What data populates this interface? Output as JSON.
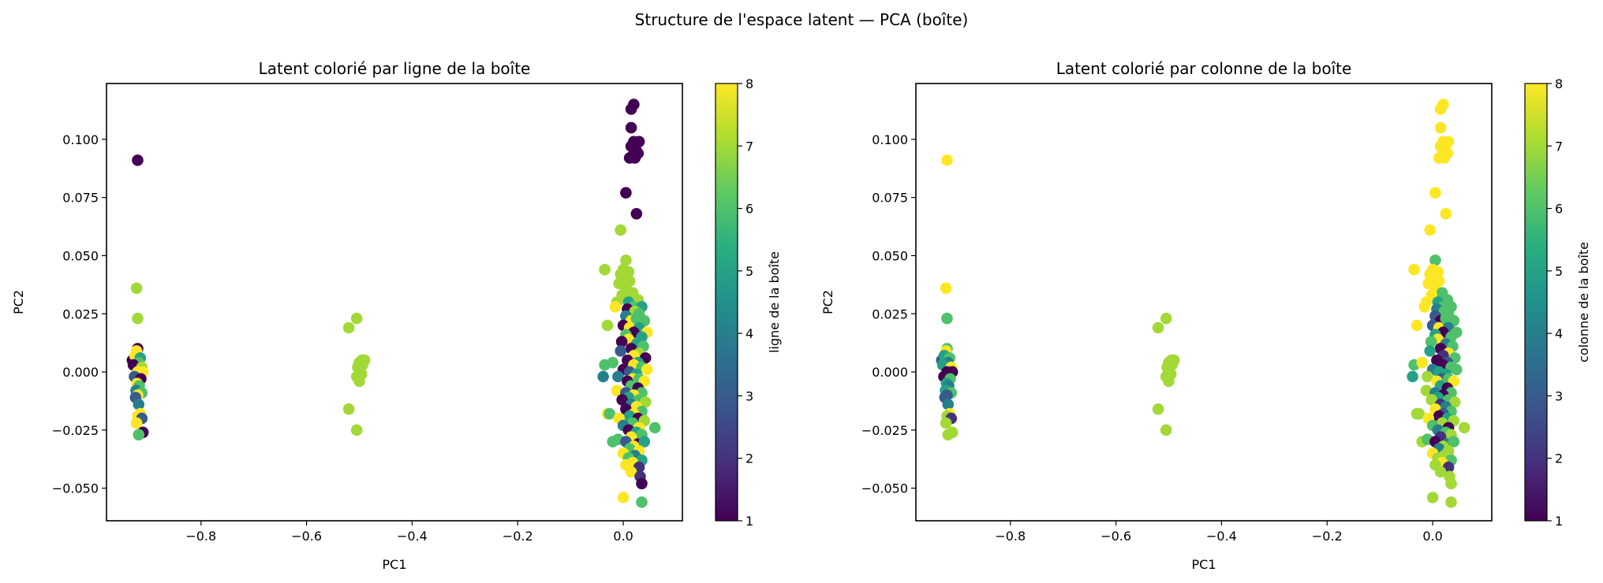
{
  "suptitle": "Structure de l'espace latent — PCA (boîte)",
  "chart_data": [
    {
      "type": "scatter",
      "title": "Latent colorié par ligne de la boîte",
      "xlabel": "PC1",
      "ylabel": "PC2",
      "colorbar_label": "ligne de la boîte",
      "color_field": "row",
      "colormap": "viridis",
      "color_range": [
        1,
        8
      ],
      "colorbar_ticks": [
        "1",
        "2",
        "3",
        "4",
        "5",
        "6",
        "7",
        "8"
      ],
      "xlim": [
        -0.979,
        0.112
      ],
      "ylim": [
        -0.064,
        0.124
      ],
      "xticks": [
        -0.8,
        -0.6,
        -0.4,
        -0.2,
        0.0
      ],
      "xtick_labels": [
        "−0.8",
        "−0.6",
        "−0.4",
        "−0.2",
        "0.0"
      ],
      "yticks": [
        -0.05,
        -0.025,
        0,
        0.025,
        0.05,
        0.075,
        0.1
      ],
      "ytick_labels": [
        "−0.050",
        "−0.025",
        "0.000",
        "0.025",
        "0.050",
        "0.075",
        "0.100"
      ],
      "grid": false
    },
    {
      "type": "scatter",
      "title": "Latent colorié par colonne de la boîte",
      "xlabel": "PC1",
      "ylabel": "PC2",
      "colorbar_label": "colonne de la boîte",
      "color_field": "col",
      "colormap": "viridis",
      "color_range": [
        1,
        8
      ],
      "colorbar_ticks": [
        "1",
        "2",
        "3",
        "4",
        "5",
        "6",
        "7",
        "8"
      ],
      "xlim": [
        -0.979,
        0.112
      ],
      "ylim": [
        -0.064,
        0.124
      ],
      "xticks": [
        -0.8,
        -0.6,
        -0.4,
        -0.2,
        0.0
      ],
      "xtick_labels": [
        "−0.8",
        "−0.6",
        "−0.4",
        "−0.2",
        "0.0"
      ],
      "yticks": [
        -0.05,
        -0.025,
        0,
        0.025,
        0.05,
        0.075,
        0.1
      ],
      "ytick_labels": [
        "−0.050",
        "−0.025",
        "0.000",
        "0.025",
        "0.050",
        "0.075",
        "0.100"
      ],
      "grid": false
    }
  ],
  "point_fields": [
    "pc1",
    "pc2",
    "row",
    "col"
  ],
  "points": [
    [
      -0.93,
      0.005,
      1,
      3
    ],
    [
      -0.92,
      0.01,
      1,
      6
    ],
    [
      -0.922,
      0.009,
      8,
      8
    ],
    [
      -0.925,
      0.007,
      8,
      5
    ],
    [
      -0.915,
      0.006,
      5,
      6
    ],
    [
      -0.918,
      0.004,
      6,
      4
    ],
    [
      -0.928,
      0.003,
      1,
      5
    ],
    [
      -0.912,
      0.002,
      7,
      8
    ],
    [
      -0.92,
      0.0,
      8,
      1
    ],
    [
      -0.91,
      0.0,
      8,
      1
    ],
    [
      -0.926,
      -0.002,
      3,
      1
    ],
    [
      -0.914,
      -0.003,
      1,
      6
    ],
    [
      -0.921,
      -0.005,
      8,
      5
    ],
    [
      -0.917,
      -0.006,
      6,
      4
    ],
    [
      -0.923,
      -0.008,
      4,
      5
    ],
    [
      -0.912,
      -0.009,
      6,
      6
    ],
    [
      -0.92,
      -0.01,
      8,
      3
    ],
    [
      -0.924,
      -0.011,
      3,
      3
    ],
    [
      -0.918,
      -0.014,
      4,
      4
    ],
    [
      -0.915,
      -0.018,
      8,
      8
    ],
    [
      -0.92,
      -0.019,
      8,
      7
    ],
    [
      -0.912,
      -0.02,
      3,
      2
    ],
    [
      -0.922,
      -0.022,
      8,
      7
    ],
    [
      -0.91,
      -0.026,
      1,
      7
    ],
    [
      -0.918,
      -0.027,
      6,
      7
    ],
    [
      -0.922,
      0.036,
      7,
      8
    ],
    [
      -0.92,
      0.023,
      7,
      6
    ],
    [
      -0.92,
      0.091,
      1,
      8
    ],
    [
      -0.52,
      0.019,
      7,
      7
    ],
    [
      -0.505,
      0.023,
      7,
      7
    ],
    [
      -0.52,
      -0.016,
      7,
      7
    ],
    [
      -0.505,
      -0.025,
      7,
      7
    ],
    [
      -0.495,
      0.005,
      7,
      7
    ],
    [
      -0.49,
      0.005,
      7,
      7
    ],
    [
      -0.5,
      0.004,
      7,
      7
    ],
    [
      -0.503,
      0.002,
      7,
      7
    ],
    [
      -0.498,
      0.0,
      7,
      7
    ],
    [
      -0.505,
      -0.002,
      7,
      7
    ],
    [
      -0.5,
      -0.004,
      7,
      7
    ],
    [
      -0.496,
      -0.001,
      7,
      7
    ],
    [
      -0.494,
      0.003,
      7,
      7
    ],
    [
      0.02,
      0.115,
      1,
      8
    ],
    [
      0.015,
      0.113,
      1,
      8
    ],
    [
      0.015,
      0.105,
      1,
      8
    ],
    [
      0.02,
      0.099,
      1,
      8
    ],
    [
      0.03,
      0.099,
      1,
      8
    ],
    [
      0.015,
      0.097,
      1,
      8
    ],
    [
      0.025,
      0.095,
      1,
      8
    ],
    [
      0.018,
      0.093,
      1,
      8
    ],
    [
      0.012,
      0.092,
      1,
      8
    ],
    [
      0.022,
      0.092,
      1,
      8
    ],
    [
      0.028,
      0.094,
      1,
      8
    ],
    [
      0.005,
      0.077,
      1,
      8
    ],
    [
      0.025,
      0.068,
      1,
      8
    ],
    [
      -0.005,
      0.061,
      7,
      8
    ],
    [
      0.005,
      0.048,
      7,
      6
    ],
    [
      0.0,
      0.044,
      7,
      8
    ],
    [
      -0.035,
      0.044,
      7,
      8
    ],
    [
      0.01,
      0.043,
      7,
      8
    ],
    [
      -0.005,
      0.042,
      7,
      8
    ],
    [
      0.002,
      0.04,
      7,
      8
    ],
    [
      -0.008,
      0.038,
      7,
      8
    ],
    [
      0.012,
      0.039,
      7,
      8
    ],
    [
      0.005,
      0.036,
      7,
      8
    ],
    [
      0.018,
      0.034,
      7,
      6
    ],
    [
      -0.002,
      0.033,
      7,
      8
    ],
    [
      -0.012,
      0.03,
      7,
      8
    ],
    [
      0.028,
      0.031,
      7,
      6
    ],
    [
      0.01,
      0.03,
      5,
      5
    ],
    [
      0.02,
      0.028,
      6,
      6
    ],
    [
      0.035,
      0.028,
      5,
      6
    ],
    [
      -0.015,
      0.028,
      8,
      8
    ],
    [
      0.008,
      0.027,
      1,
      4
    ],
    [
      0.022,
      0.026,
      7,
      6
    ],
    [
      0.03,
      0.025,
      6,
      6
    ],
    [
      -0.03,
      0.02,
      7,
      8
    ],
    [
      0.005,
      0.024,
      4,
      3
    ],
    [
      0.015,
      0.022,
      8,
      1
    ],
    [
      0.025,
      0.023,
      6,
      6
    ],
    [
      0.04,
      0.022,
      6,
      6
    ],
    [
      0.0,
      0.02,
      1,
      3
    ],
    [
      0.012,
      0.019,
      8,
      8
    ],
    [
      0.03,
      0.019,
      5,
      4
    ],
    [
      0.045,
      0.017,
      8,
      6
    ],
    [
      0.02,
      0.017,
      1,
      1
    ],
    [
      0.005,
      0.016,
      6,
      5
    ],
    [
      0.035,
      0.015,
      5,
      6
    ],
    [
      0.01,
      0.014,
      8,
      8
    ],
    [
      -0.003,
      0.013,
      1,
      6
    ],
    [
      0.025,
      0.012,
      5,
      4
    ],
    [
      0.038,
      0.011,
      6,
      6
    ],
    [
      0.015,
      0.01,
      1,
      1
    ],
    [
      -0.005,
      0.009,
      3,
      5
    ],
    [
      0.03,
      0.008,
      7,
      8
    ],
    [
      0.02,
      0.007,
      8,
      2
    ],
    [
      0.042,
      0.006,
      1,
      6
    ],
    [
      0.008,
      0.005,
      1,
      1
    ],
    [
      0.028,
      0.004,
      5,
      3
    ],
    [
      -0.035,
      0.003,
      6,
      6
    ],
    [
      -0.02,
      0.004,
      6,
      8
    ],
    [
      0.02,
      0.003,
      8,
      1
    ],
    [
      0.035,
      0.002,
      6,
      6
    ],
    [
      0.0,
      0.001,
      1,
      4
    ],
    [
      0.012,
      0.0,
      3,
      5
    ],
    [
      0.045,
      0.001,
      8,
      6
    ],
    [
      0.025,
      -0.001,
      5,
      5
    ],
    [
      0.018,
      -0.003,
      8,
      3
    ],
    [
      -0.01,
      -0.002,
      4,
      7
    ],
    [
      0.03,
      -0.003,
      6,
      6
    ],
    [
      -0.038,
      -0.002,
      4,
      5
    ],
    [
      0.008,
      -0.004,
      1,
      8
    ],
    [
      0.04,
      -0.004,
      8,
      8
    ],
    [
      0.015,
      -0.006,
      6,
      5
    ],
    [
      0.028,
      -0.007,
      1,
      1
    ],
    [
      -0.012,
      -0.008,
      8,
      7
    ],
    [
      0.005,
      -0.009,
      3,
      4
    ],
    [
      0.035,
      -0.009,
      6,
      6
    ],
    [
      0.02,
      -0.01,
      8,
      1
    ],
    [
      0.01,
      -0.011,
      5,
      5
    ],
    [
      -0.002,
      -0.012,
      1,
      7
    ],
    [
      0.03,
      -0.012,
      6,
      6
    ],
    [
      0.042,
      -0.013,
      7,
      7
    ],
    [
      0.015,
      -0.014,
      4,
      2
    ],
    [
      0.025,
      -0.015,
      8,
      4
    ],
    [
      -0.03,
      -0.018,
      8,
      7
    ],
    [
      -0.026,
      -0.018,
      6,
      7
    ],
    [
      0.005,
      -0.016,
      1,
      8
    ],
    [
      0.035,
      -0.017,
      6,
      6
    ],
    [
      0.02,
      -0.018,
      8,
      3
    ],
    [
      0.012,
      -0.019,
      5,
      1
    ],
    [
      0.028,
      -0.02,
      1,
      5
    ],
    [
      -0.008,
      -0.02,
      8,
      8
    ],
    [
      0.04,
      -0.021,
      7,
      7
    ],
    [
      0.018,
      -0.022,
      6,
      7
    ],
    [
      0.0,
      -0.023,
      4,
      6
    ],
    [
      0.03,
      -0.024,
      8,
      1
    ],
    [
      0.06,
      -0.024,
      6,
      7
    ],
    [
      0.01,
      -0.025,
      1,
      4
    ],
    [
      0.025,
      -0.026,
      5,
      6
    ],
    [
      0.035,
      -0.027,
      6,
      7
    ],
    [
      0.015,
      -0.028,
      8,
      2
    ],
    [
      -0.02,
      -0.03,
      6,
      7
    ],
    [
      -0.01,
      -0.029,
      6,
      6
    ],
    [
      0.005,
      -0.03,
      3,
      1
    ],
    [
      0.028,
      -0.031,
      1,
      4
    ],
    [
      0.02,
      -0.032,
      8,
      7
    ],
    [
      0.04,
      -0.03,
      5,
      6
    ],
    [
      0.012,
      -0.033,
      6,
      4
    ],
    [
      0.03,
      -0.034,
      8,
      7
    ],
    [
      0.0,
      -0.035,
      8,
      8
    ],
    [
      0.022,
      -0.036,
      4,
      7
    ],
    [
      0.01,
      -0.037,
      6,
      7
    ],
    [
      0.035,
      -0.038,
      5,
      6
    ],
    [
      0.018,
      -0.039,
      8,
      8
    ],
    [
      0.03,
      -0.041,
      2,
      2
    ],
    [
      0.005,
      -0.04,
      8,
      7
    ],
    [
      0.015,
      -0.043,
      8,
      7
    ],
    [
      0.032,
      -0.045,
      2,
      7
    ],
    [
      0.035,
      -0.048,
      1,
      7
    ],
    [
      0.0,
      -0.054,
      8,
      7
    ],
    [
      0.035,
      -0.056,
      6,
      7
    ]
  ]
}
